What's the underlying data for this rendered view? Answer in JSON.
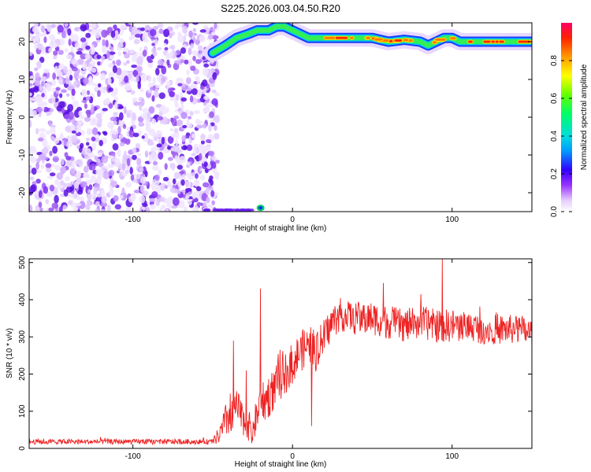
{
  "title": "S225.2026.003.04.50.R20",
  "chart_data": [
    {
      "type": "heatmap",
      "xlabel": "Height of straight line (km)",
      "ylabel": "Frequency (Hz)",
      "xlim": [
        -165,
        150
      ],
      "ylim": [
        -25,
        25
      ],
      "xticks": [
        -100,
        0,
        100
      ],
      "yticks": [
        -20,
        -10,
        0,
        10,
        20
      ],
      "colorbar": {
        "label": "Normalized spectral amplitude",
        "range": [
          0,
          1
        ],
        "ticks": [
          0.0,
          0.2,
          0.4,
          0.6,
          0.8
        ]
      },
      "noise_region": {
        "x_range": [
          -165,
          -55
        ],
        "y_range": [
          -25,
          25
        ]
      },
      "ridge": {
        "x": [
          -50,
          -42,
          -35,
          -28,
          -22,
          -15,
          -10,
          -5,
          0,
          5,
          10,
          20,
          30,
          40,
          50,
          60,
          70,
          80,
          85,
          90,
          95,
          100,
          105,
          110,
          115,
          120,
          130,
          140,
          150
        ],
        "y": [
          17,
          19,
          21,
          22,
          23,
          23,
          24,
          24,
          23,
          22,
          21,
          21,
          21,
          21,
          21,
          20,
          20.5,
          20,
          19,
          20,
          21,
          21,
          20,
          20,
          20,
          20,
          20,
          20,
          20
        ],
        "peak_x_range": [
          20,
          150
        ]
      }
    },
    {
      "type": "line",
      "xlabel": "Height of straight line (km)",
      "ylabel": "SNR (10 * v/v)",
      "xlim": [
        -165,
        150
      ],
      "ylim": [
        0,
        510
      ],
      "xticks": [
        -100,
        0,
        100
      ],
      "yticks": [
        0,
        100,
        200,
        300,
        400,
        500
      ],
      "color": "#ee2222",
      "envelope": {
        "x": [
          -165,
          -50,
          -45,
          -40,
          -35,
          -30,
          -25,
          -20,
          -15,
          -10,
          -5,
          0,
          5,
          10,
          15,
          20,
          25,
          30,
          40,
          50,
          60,
          70,
          80,
          90,
          100,
          110,
          120,
          130,
          140,
          150
        ],
        "baseline": [
          18,
          18,
          40,
          90,
          110,
          70,
          50,
          120,
          140,
          170,
          200,
          230,
          260,
          280,
          260,
          300,
          340,
          360,
          350,
          350,
          340,
          330,
          340,
          330,
          330,
          330,
          320,
          320,
          320,
          310
        ],
        "spread": [
          7,
          7,
          30,
          60,
          50,
          40,
          40,
          60,
          60,
          55,
          55,
          55,
          55,
          55,
          55,
          50,
          45,
          45,
          45,
          45,
          45,
          45,
          45,
          45,
          45,
          40,
          40,
          40,
          40,
          40
        ]
      },
      "spikes": [
        {
          "x": -37,
          "y": 290
        },
        {
          "x": -29,
          "y": 210
        },
        {
          "x": -20,
          "y": 430
        },
        {
          "x": 12,
          "y": 60
        },
        {
          "x": 94,
          "y": 510
        },
        {
          "x": 57,
          "y": 445
        }
      ]
    }
  ]
}
